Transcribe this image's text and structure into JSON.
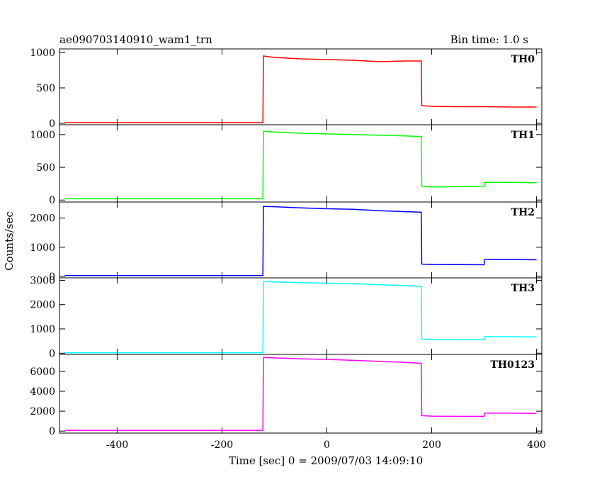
{
  "header": {
    "title": "ae090703140910_wam1_trn",
    "bin_time": "Bin time: 1.0 s"
  },
  "chart_data": {
    "type": "line",
    "xlabel": "Time [sec] 0 = 2009/07/03 14:09:10",
    "ylabel": "Counts/sec",
    "xlim": [
      -510,
      410
    ],
    "x_ticks": [
      -400,
      -200,
      0,
      200,
      400
    ],
    "grid": false,
    "panels": [
      {
        "name": "TH0",
        "color": "#ff0000",
        "ylim": [
          -20,
          1050
        ],
        "y_ticks": [
          0,
          500,
          1000
        ],
        "x": [
          -500,
          -122,
          -121,
          -100,
          -50,
          0,
          50,
          100,
          150,
          180,
          181,
          200,
          250,
          300,
          350,
          400
        ],
        "y": [
          10,
          10,
          950,
          930,
          910,
          900,
          890,
          870,
          880,
          880,
          250,
          240,
          235,
          235,
          230,
          230
        ]
      },
      {
        "name": "TH1",
        "color": "#00ff00",
        "ylim": [
          -30,
          1150
        ],
        "y_ticks": [
          0,
          500,
          1000
        ],
        "x": [
          -500,
          -122,
          -121,
          -100,
          -50,
          0,
          50,
          100,
          150,
          180,
          181,
          200,
          250,
          300,
          301,
          350,
          400
        ],
        "y": [
          20,
          20,
          1050,
          1040,
          1020,
          1010,
          1000,
          990,
          980,
          970,
          210,
          200,
          205,
          210,
          270,
          270,
          265
        ]
      },
      {
        "name": "TH2",
        "color": "#0000ff",
        "ylim": [
          -50,
          2550
        ],
        "y_ticks": [
          0,
          1000,
          2000
        ],
        "x": [
          -500,
          -122,
          -121,
          -100,
          -50,
          0,
          50,
          100,
          150,
          180,
          181,
          200,
          250,
          300,
          301,
          350,
          400
        ],
        "y": [
          30,
          30,
          2400,
          2390,
          2350,
          2320,
          2300,
          2250,
          2220,
          2200,
          420,
          410,
          405,
          400,
          580,
          580,
          570
        ]
      },
      {
        "name": "TH3",
        "color": "#00ffff",
        "ylim": [
          -50,
          3100
        ],
        "y_ticks": [
          0,
          1000,
          2000,
          3000
        ],
        "x": [
          -500,
          -122,
          -121,
          -100,
          -50,
          0,
          50,
          100,
          150,
          180,
          181,
          200,
          250,
          300,
          301,
          350,
          400
        ],
        "y": [
          20,
          20,
          2950,
          2930,
          2900,
          2880,
          2860,
          2820,
          2780,
          2750,
          580,
          570,
          560,
          560,
          680,
          680,
          670
        ]
      },
      {
        "name": "TH0123",
        "color": "#ff00ff",
        "ylim": [
          -200,
          7700
        ],
        "y_ticks": [
          0,
          2000,
          4000,
          6000
        ],
        "x": [
          -500,
          -122,
          -121,
          -100,
          -50,
          0,
          50,
          100,
          150,
          180,
          181,
          200,
          250,
          300,
          301,
          350,
          400
        ],
        "y": [
          80,
          80,
          7400,
          7350,
          7250,
          7200,
          7100,
          7000,
          6900,
          6800,
          1550,
          1500,
          1480,
          1480,
          1800,
          1800,
          1780
        ]
      }
    ]
  }
}
